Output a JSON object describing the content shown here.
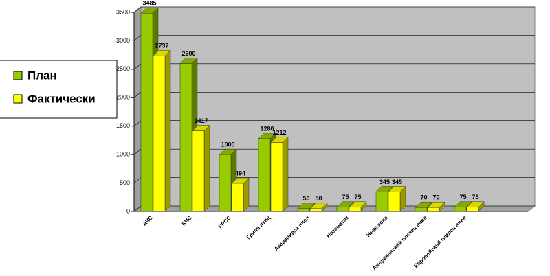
{
  "chart_data": {
    "type": "bar3d",
    "categories": [
      "АЧС",
      "КЧС",
      "РРСС",
      "Грипп птиц",
      "Акарапидоз пчел",
      "Нозематоз",
      "Ньюкасла",
      "Американский гнилец пчел",
      "Европейский гнилец пчел"
    ],
    "series": [
      {
        "name": "План",
        "color": "#99cc00",
        "values": [
          3485,
          2600,
          1000,
          1280,
          50,
          75,
          345,
          70,
          75
        ]
      },
      {
        "name": "Фактически",
        "color": "#ffff00",
        "values": [
          2737,
          1417,
          494,
          1212,
          50,
          75,
          345,
          70,
          75
        ]
      }
    ],
    "ylim": [
      0,
      3500
    ],
    "yticks": [
      0,
      500,
      1000,
      1500,
      2000,
      2500,
      3000,
      3500
    ],
    "grid": true
  }
}
